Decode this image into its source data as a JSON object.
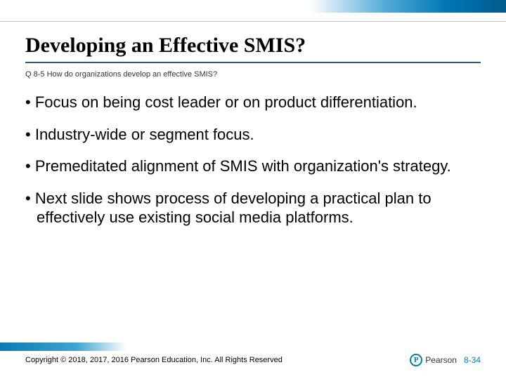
{
  "top_gradient_colors": [
    "#ffffff",
    "#4da9d6",
    "#0077b5",
    "#005a8c"
  ],
  "title": "Developing an Effective SMIS?",
  "title_color": "#000000",
  "title_underline_color": "#2a5a7a",
  "subtitle": "Q 8-5 How do organizations develop an effective SMIS?",
  "bullets": [
    "Focus on being cost leader or on product differentiation.",
    "Industry-wide or segment focus.",
    "Premeditated alignment of SMIS with organization's strategy.",
    "Next slide shows process of developing a practical plan to effectively use existing social media platforms."
  ],
  "footer_bar_colors": [
    "#0a7bb0",
    "#3fa3d1",
    "#ffffff"
  ],
  "copyright": "Copyright © 2018, 2017, 2016 Pearson Education, Inc. All Rights Reserved",
  "logo": {
    "mark_letter": "P",
    "mark_color": "#007fa3",
    "text": "Pearson"
  },
  "page_number": "8-34",
  "page_number_color": "#0a7bb0"
}
